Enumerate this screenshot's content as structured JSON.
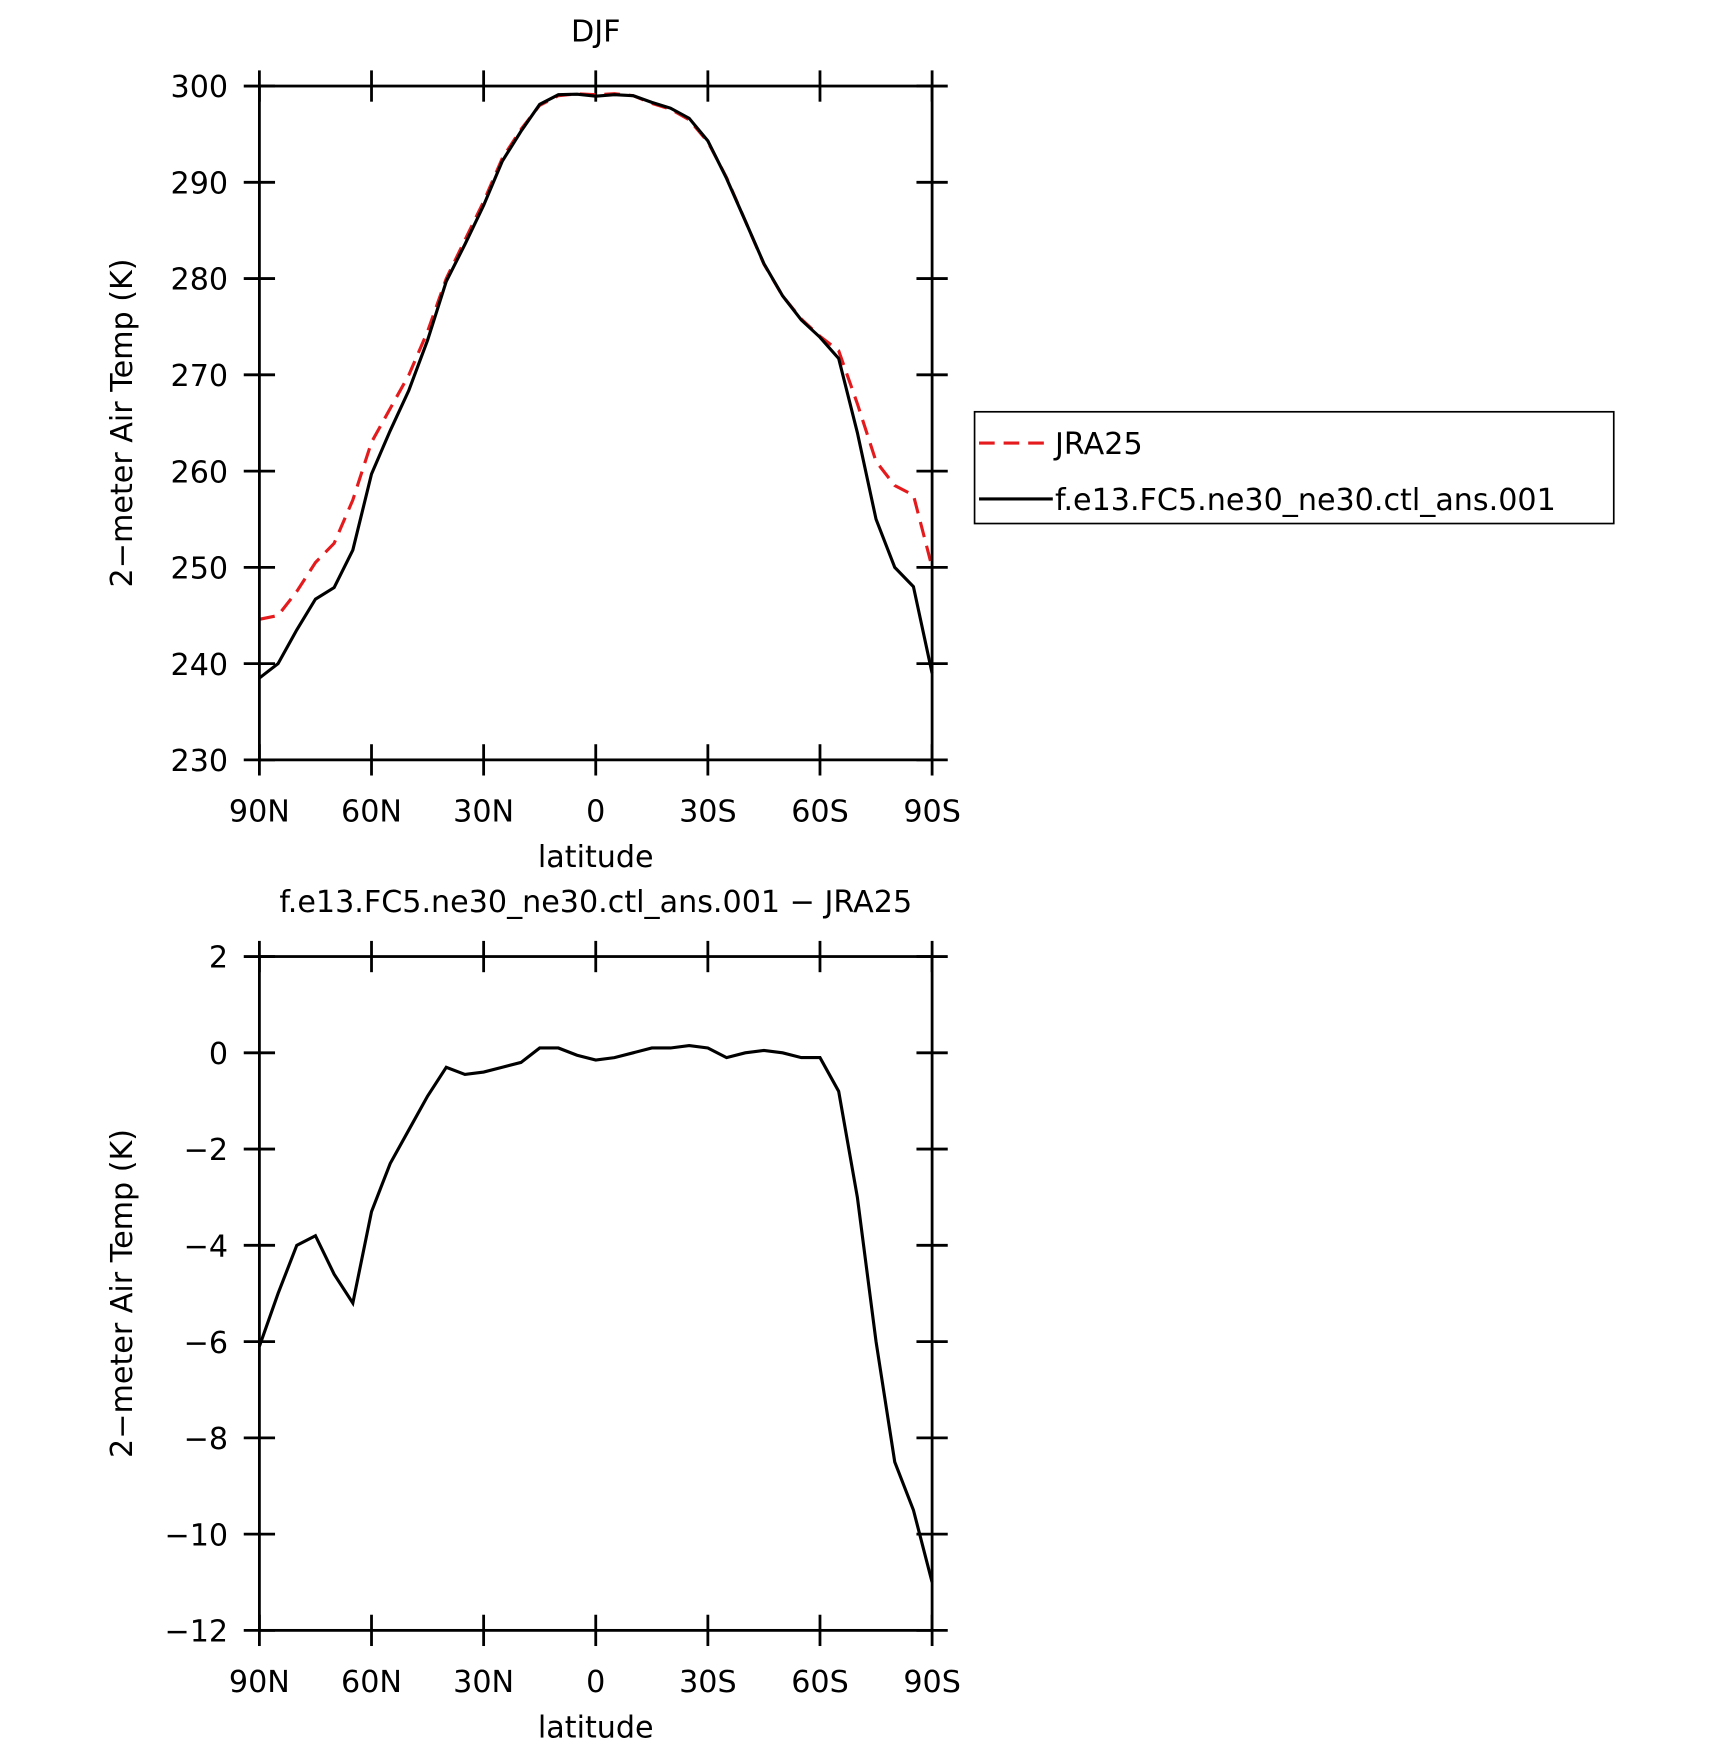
{
  "chart_data": [
    {
      "type": "line",
      "title": "DJF",
      "xlabel": "latitude",
      "ylabel": "2−meter Air Temp (K)",
      "x": [
        90,
        85,
        80,
        75,
        70,
        65,
        60,
        55,
        50,
        45,
        40,
        35,
        30,
        25,
        20,
        15,
        10,
        5,
        0,
        -5,
        -10,
        -15,
        -20,
        -25,
        -30,
        -35,
        -40,
        -45,
        -50,
        -55,
        -60,
        -65,
        -70,
        -75,
        -80,
        -85,
        -90
      ],
      "xlim": [
        90,
        -90
      ],
      "xticks": [
        {
          "value": 90,
          "label": "90N"
        },
        {
          "value": 60,
          "label": "60N"
        },
        {
          "value": 30,
          "label": "30N"
        },
        0,
        {
          "value": -30,
          "label": "30S"
        },
        {
          "value": -60,
          "label": "60S"
        },
        {
          "value": -90,
          "label": "90S"
        }
      ],
      "ylim": [
        230,
        300
      ],
      "yticks": [
        230,
        240,
        250,
        260,
        270,
        280,
        290,
        300
      ],
      "legend": "right",
      "series": [
        {
          "name": "JRA25",
          "color": "#e41a1c",
          "dashed": true,
          "values": [
            244.6,
            245,
            247.5,
            250.5,
            252.5,
            257,
            263,
            266.5,
            270,
            274.5,
            280,
            284,
            288,
            292.5,
            295.5,
            298,
            299,
            299.2,
            299.1,
            299.2,
            299,
            298.2,
            297.6,
            296.5,
            294.2,
            290.5,
            286,
            281.5,
            278.2,
            275.8,
            274,
            272.5,
            267,
            261,
            258.5,
            257.5,
            250
          ]
        },
        {
          "name": "f.e13.FC5.ne30_ne30.ctl_ans.001",
          "color": "#000000",
          "dashed": false,
          "values": [
            238.5,
            240,
            243.5,
            246.7,
            247.9,
            251.8,
            259.7,
            264.2,
            268.4,
            273.6,
            279.7,
            283.55,
            287.6,
            292.2,
            295.3,
            298.1,
            299.1,
            299.15,
            298.95,
            299.1,
            299,
            298.3,
            297.7,
            296.65,
            294.3,
            290.4,
            286,
            281.55,
            278.2,
            275.7,
            273.9,
            271.7,
            264,
            255,
            250,
            248,
            239
          ]
        }
      ]
    },
    {
      "type": "line",
      "title": "f.e13.FC5.ne30_ne30.ctl_ans.001 − JRA25",
      "xlabel": "latitude",
      "ylabel": "2−meter Air Temp (K)",
      "x": [
        90,
        85,
        80,
        75,
        70,
        65,
        60,
        55,
        50,
        45,
        40,
        35,
        30,
        25,
        20,
        15,
        10,
        5,
        0,
        -5,
        -10,
        -15,
        -20,
        -25,
        -30,
        -35,
        -40,
        -45,
        -50,
        -55,
        -60,
        -65,
        -70,
        -75,
        -80,
        -85,
        -90
      ],
      "xlim": [
        90,
        -90
      ],
      "xticks": [
        {
          "value": 90,
          "label": "90N"
        },
        {
          "value": 60,
          "label": "60N"
        },
        {
          "value": 30,
          "label": "30N"
        },
        0,
        {
          "value": -30,
          "label": "30S"
        },
        {
          "value": -60,
          "label": "60S"
        },
        {
          "value": -90,
          "label": "90S"
        }
      ],
      "ylim": [
        -12,
        2
      ],
      "yticks": [
        {
          "value": -12,
          "label": "−12"
        },
        {
          "value": -10,
          "label": "−10"
        },
        {
          "value": -8,
          "label": "−8"
        },
        {
          "value": -6,
          "label": "−6"
        },
        {
          "value": -4,
          "label": "−4"
        },
        {
          "value": -2,
          "label": "−2"
        },
        0,
        2
      ],
      "series": [
        {
          "color": "#000000",
          "dashed": false,
          "values": [
            -6.1,
            -5,
            -4,
            -3.8,
            -4.6,
            -5.2,
            -3.3,
            -2.3,
            -1.6,
            -0.9,
            -0.3,
            -0.45,
            -0.4,
            -0.3,
            -0.2,
            0.1,
            0.1,
            -0.05,
            -0.15,
            -0.1,
            0,
            0.1,
            0.1,
            0.15,
            0.1,
            -0.1,
            0,
            0.05,
            0,
            -0.1,
            -0.1,
            -0.8,
            -3,
            -6,
            -8.5,
            -9.5,
            -11
          ]
        }
      ]
    }
  ]
}
